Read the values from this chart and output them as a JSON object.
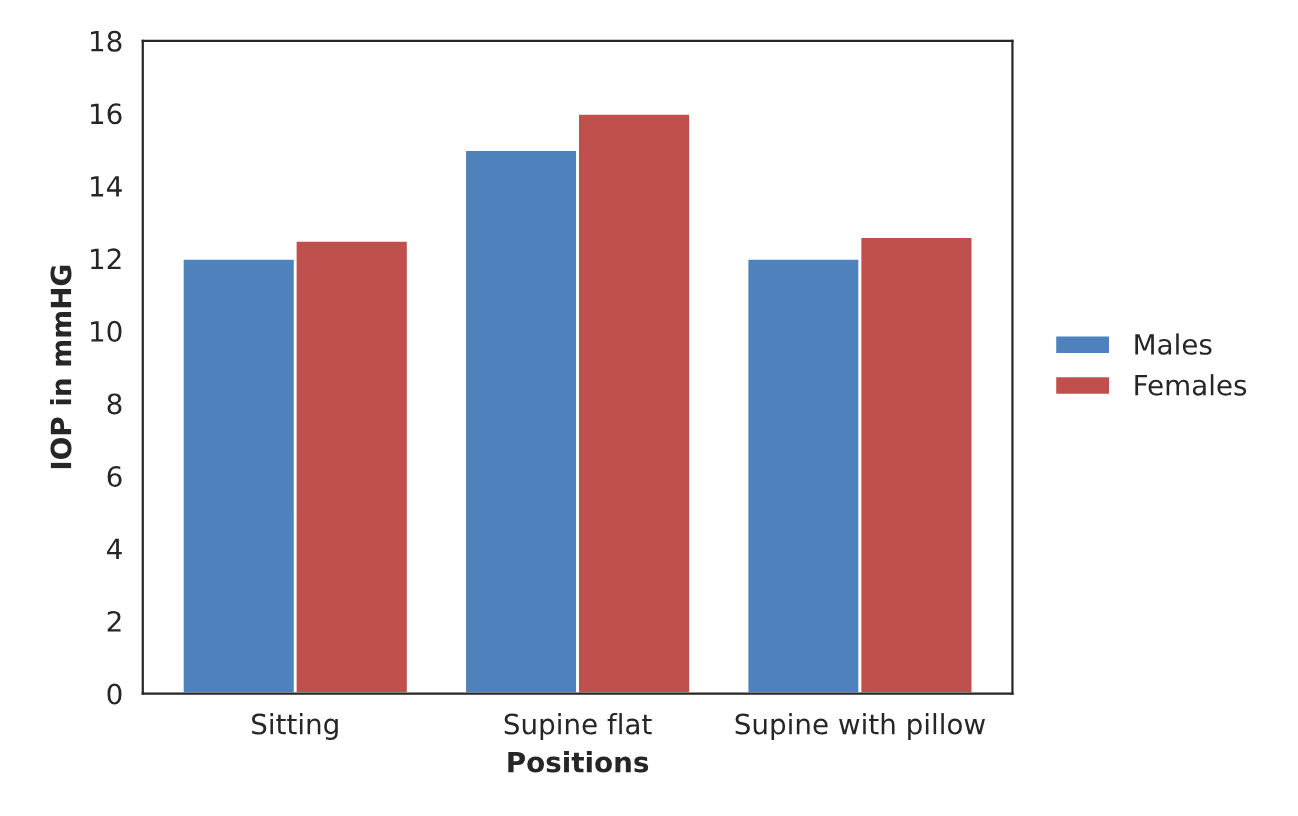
{
  "chart_data": {
    "type": "bar",
    "xlabel": "Positions",
    "ylabel": "IOP in mmHG",
    "categories": [
      "Sitting",
      "Supine flat",
      "Supine with pillow"
    ],
    "series": [
      {
        "name": "Males",
        "color": "#4f81bd",
        "values": [
          12,
          15,
          12
        ]
      },
      {
        "name": "Females",
        "color": "#c0504d",
        "values": [
          12.5,
          16,
          12.6
        ]
      }
    ],
    "ylim": [
      0,
      18
    ],
    "yticks": [
      0,
      2,
      4,
      6,
      8,
      10,
      12,
      14,
      16,
      18
    ],
    "grid": false,
    "legend": "right"
  }
}
